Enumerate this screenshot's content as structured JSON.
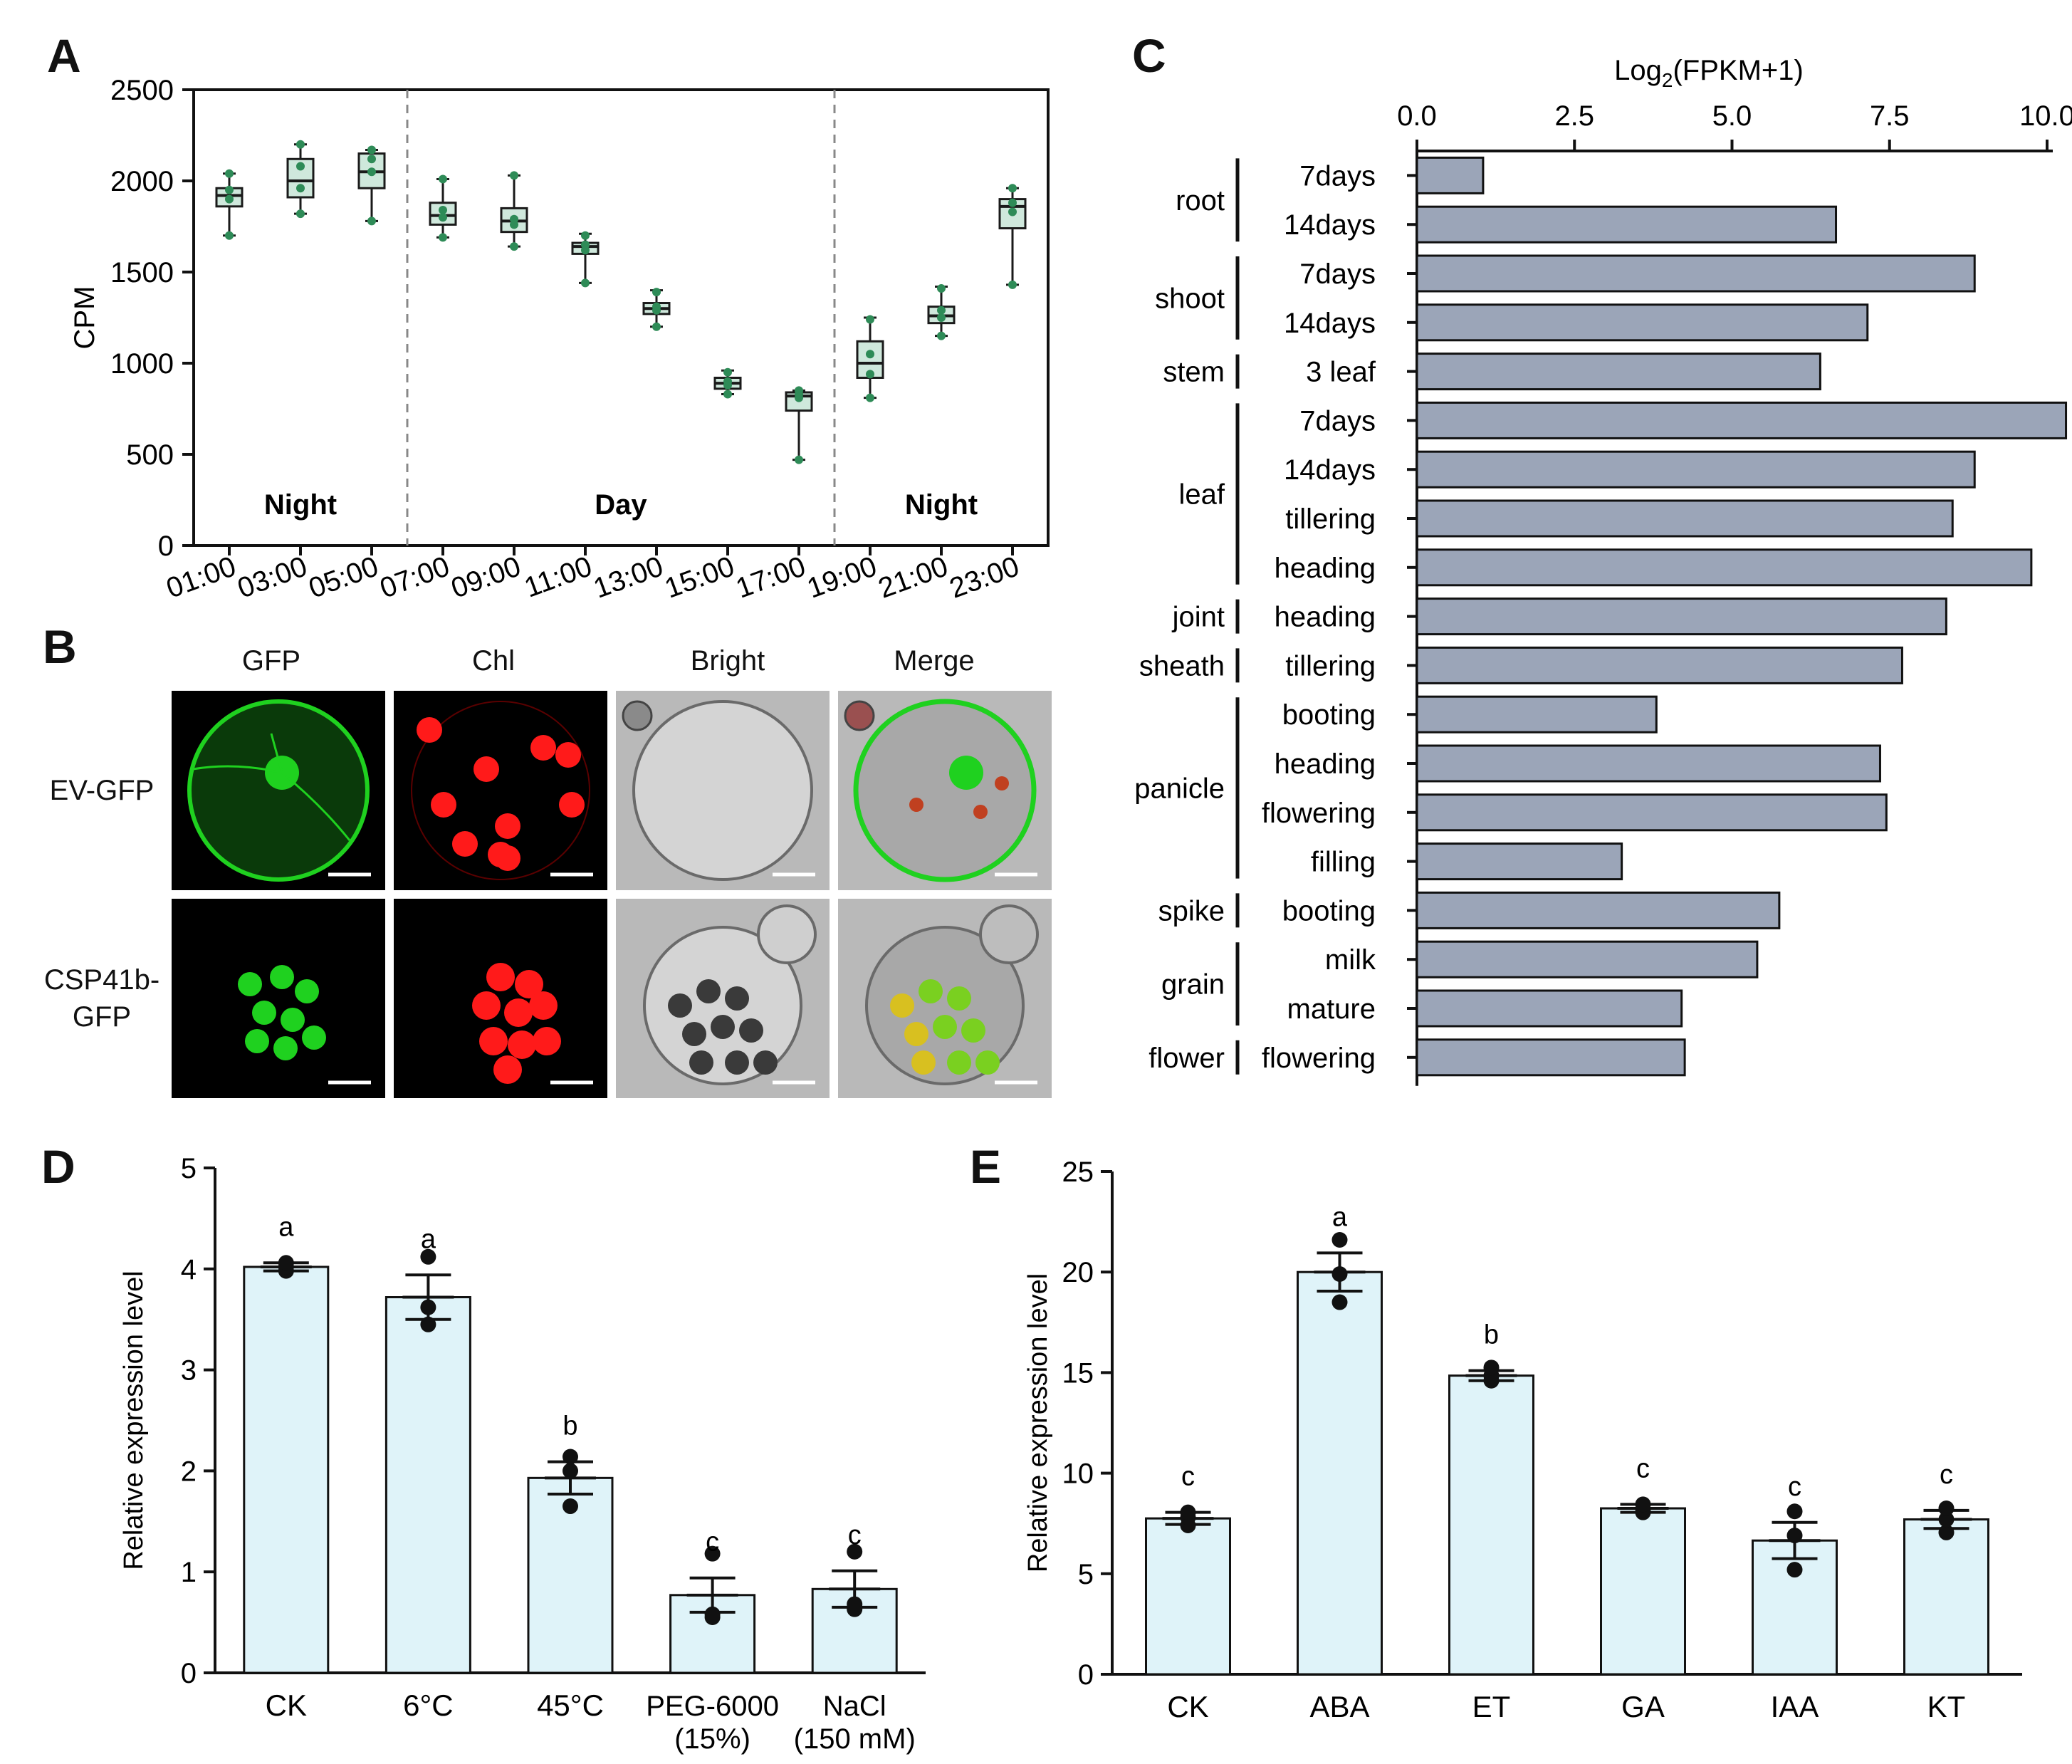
{
  "panelA": {
    "letter": "A",
    "ylabel": "CPM",
    "yticks": [
      "0",
      "500",
      "1000",
      "1500",
      "2000",
      "2500"
    ],
    "xticks": [
      "01:00",
      "03:00",
      "05:00",
      "07:00",
      "09:00",
      "11:00",
      "13:00",
      "15:00",
      "17:00",
      "19:00",
      "21:00",
      "23:00"
    ],
    "periods": [
      "Night",
      "Day",
      "Night"
    ],
    "colors": {
      "box_fill": "#cfe8dc",
      "point": "#2e8b57",
      "line": "#1a1a1a"
    }
  },
  "panelB": {
    "letter": "B",
    "columns": [
      "GFP",
      "Chl",
      "Bright",
      "Merge"
    ],
    "rows": [
      "EV-GFP",
      "CSP41b-\nGFP"
    ],
    "colors": {
      "gfp": "#1fd11f",
      "chl": "#ff1a1a",
      "bright": "#b9b9b9",
      "dark": "#000000"
    }
  },
  "panelC": {
    "letter": "C",
    "xlabel_main": "Log",
    "xlabel_sub": "2",
    "xlabel_rest": "(FPKM+1)",
    "xticks": [
      "0.0",
      "2.5",
      "5.0",
      "7.5",
      "10.0"
    ],
    "groups": [
      "root",
      "shoot",
      "stem",
      "leaf",
      "joint",
      "sheath",
      "panicle",
      "spike",
      "grain",
      "flower"
    ],
    "stages": [
      "7days",
      "14days",
      "7days",
      "14days",
      "3 leaf",
      "7days",
      "14days",
      "tillering",
      "heading",
      "heading",
      "tillering",
      "booting",
      "heading",
      "flowering",
      "filling",
      "booting",
      "milk",
      "mature",
      "flowering"
    ],
    "colors": {
      "bar": "#9ba5b8"
    }
  },
  "panelD": {
    "letter": "D",
    "ylabel": "Relative expression level",
    "yticks": [
      "0",
      "1",
      "2",
      "3",
      "4",
      "5"
    ],
    "categories": [
      "CK",
      "6°C",
      "45°C",
      "PEG-6000\n(15%)",
      "NaCl\n(150 mM)"
    ],
    "letters": [
      "a",
      "a",
      "b",
      "c",
      "c"
    ],
    "colors": {
      "bar": "#dff3f9"
    }
  },
  "panelE": {
    "letter": "E",
    "ylabel": "Relative expression level",
    "yticks": [
      "0",
      "5",
      "10",
      "15",
      "20",
      "25"
    ],
    "categories": [
      "CK",
      "ABA",
      "ET",
      "GA",
      "IAA",
      "KT"
    ],
    "letters": [
      "c",
      "a",
      "b",
      "c",
      "c",
      "c"
    ],
    "colors": {
      "bar": "#dff3f9"
    }
  },
  "chart_data": [
    {
      "panel": "A",
      "type": "box",
      "ylabel": "CPM",
      "ylim": [
        0,
        2500
      ],
      "categories": [
        "01:00",
        "03:00",
        "05:00",
        "07:00",
        "09:00",
        "11:00",
        "13:00",
        "15:00",
        "17:00",
        "19:00",
        "21:00",
        "23:00"
      ],
      "boxes": [
        {
          "q1": 1860,
          "median": 1920,
          "q3": 1960,
          "min": 1700,
          "max": 2040,
          "points": [
            1700,
            1900,
            1950,
            2040
          ]
        },
        {
          "q1": 1910,
          "median": 2000,
          "q3": 2120,
          "min": 1820,
          "max": 2200,
          "points": [
            1820,
            1960,
            2080,
            2200
          ]
        },
        {
          "q1": 1960,
          "median": 2050,
          "q3": 2150,
          "min": 1780,
          "max": 2170,
          "points": [
            1780,
            2050,
            2120,
            2170
          ]
        },
        {
          "q1": 1760,
          "median": 1810,
          "q3": 1880,
          "min": 1690,
          "max": 2010,
          "points": [
            1690,
            1800,
            1840,
            2010
          ]
        },
        {
          "q1": 1720,
          "median": 1780,
          "q3": 1850,
          "min": 1640,
          "max": 2030,
          "points": [
            1640,
            1760,
            1790,
            2030
          ]
        },
        {
          "q1": 1600,
          "median": 1640,
          "q3": 1660,
          "min": 1440,
          "max": 1710,
          "points": [
            1440,
            1620,
            1650,
            1700
          ]
        },
        {
          "q1": 1270,
          "median": 1300,
          "q3": 1330,
          "min": 1200,
          "max": 1400,
          "points": [
            1200,
            1290,
            1310,
            1390
          ]
        },
        {
          "q1": 860,
          "median": 890,
          "q3": 920,
          "min": 830,
          "max": 960,
          "points": [
            830,
            880,
            900,
            950
          ]
        },
        {
          "q1": 740,
          "median": 820,
          "q3": 840,
          "min": 470,
          "max": 850,
          "points": [
            470,
            810,
            830,
            850
          ]
        },
        {
          "q1": 920,
          "median": 1000,
          "q3": 1120,
          "min": 810,
          "max": 1250,
          "points": [
            810,
            940,
            1050,
            1240
          ]
        },
        {
          "q1": 1220,
          "median": 1260,
          "q3": 1310,
          "min": 1150,
          "max": 1420,
          "points": [
            1150,
            1250,
            1290,
            1410
          ]
        },
        {
          "q1": 1740,
          "median": 1860,
          "q3": 1900,
          "min": 1430,
          "max": 1960,
          "points": [
            1430,
            1830,
            1880,
            1960
          ]
        }
      ],
      "period_labels": [
        "Night",
        "Day",
        "Night"
      ]
    },
    {
      "panel": "C",
      "type": "bar",
      "orientation": "horizontal",
      "xlabel": "Log2(FPKM+1)",
      "xlim": [
        0,
        10.0
      ],
      "categories": [
        "root 7days",
        "root 14days",
        "shoot 7days",
        "shoot 14days",
        "stem 3 leaf",
        "leaf 7days",
        "leaf 14days",
        "leaf tillering",
        "leaf heading",
        "joint heading",
        "sheath tillering",
        "panicle booting",
        "panicle heading",
        "panicle flowering",
        "panicle filling",
        "spike booting",
        "grain milk",
        "grain mature",
        "flower flowering"
      ],
      "values": [
        1.05,
        6.65,
        8.85,
        7.15,
        6.4,
        10.3,
        8.85,
        8.5,
        9.75,
        8.4,
        7.7,
        3.8,
        7.35,
        7.45,
        3.25,
        5.75,
        5.4,
        4.2,
        4.25
      ]
    },
    {
      "panel": "D",
      "type": "bar",
      "ylabel": "Relative expression level",
      "ylim": [
        0,
        5
      ],
      "categories": [
        "CK",
        "6°C",
        "45°C",
        "PEG-6000 (15%)",
        "NaCl (150 mM)"
      ],
      "values": [
        4.02,
        3.72,
        1.93,
        0.77,
        0.83
      ],
      "errors": [
        0.04,
        0.22,
        0.16,
        0.17,
        0.18
      ],
      "points": [
        [
          3.98,
          4.02,
          4.06
        ],
        [
          3.45,
          3.62,
          4.12
        ],
        [
          1.65,
          2.0,
          2.14
        ],
        [
          0.55,
          0.58,
          1.18
        ],
        [
          0.63,
          0.68,
          1.2
        ]
      ],
      "significance": [
        "a",
        "a",
        "b",
        "c",
        "c"
      ]
    },
    {
      "panel": "E",
      "type": "bar",
      "ylabel": "Relative expression level",
      "ylim": [
        0,
        25
      ],
      "categories": [
        "CK",
        "ABA",
        "ET",
        "GA",
        "IAA",
        "KT"
      ],
      "values": [
        7.75,
        20.0,
        14.85,
        8.25,
        6.65,
        7.7
      ],
      "errors": [
        0.3,
        0.95,
        0.25,
        0.2,
        0.9,
        0.45
      ],
      "points": [
        [
          7.4,
          7.8,
          8.05
        ],
        [
          18.5,
          19.9,
          21.6
        ],
        [
          14.6,
          14.85,
          15.25
        ],
        [
          8.05,
          8.2,
          8.45
        ],
        [
          5.2,
          6.9,
          8.1
        ],
        [
          7.05,
          7.7,
          8.25
        ]
      ],
      "significance": [
        "c",
        "a",
        "b",
        "c",
        "c",
        "c"
      ]
    }
  ]
}
